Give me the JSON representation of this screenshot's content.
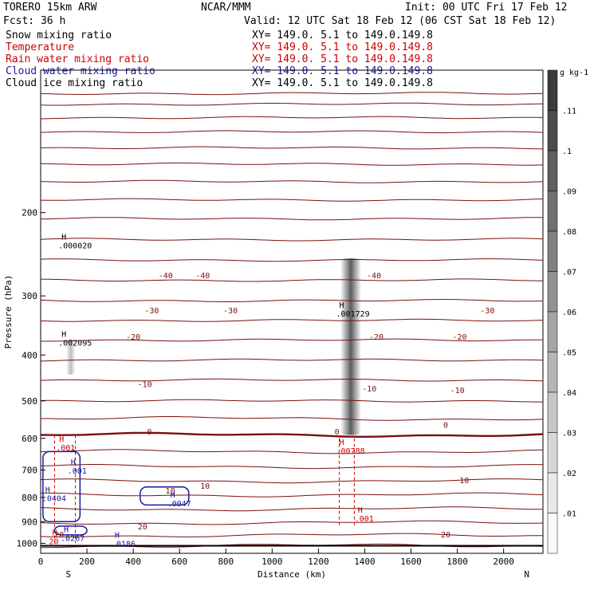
{
  "header": {
    "model": "TORERO  15km ARW",
    "org": "NCAR/MMM",
    "init": "Init: 00 UTC Fri 17 Feb 12",
    "fcst": "Fcst:   36 h",
    "valid": "Valid: 12 UTC Sat 18 Feb 12 (06 CST Sat 18 Feb 12)"
  },
  "fields": [
    {
      "label": "Snow mixing ratio",
      "xy": "XY= 149.0.  5.1 to 149.0.149.8",
      "color": "#000000"
    },
    {
      "label": "Temperature",
      "xy": "XY= 149.0.  5.1 to 149.0.149.8",
      "color": "#cc0000"
    },
    {
      "label": "Rain water mixing ratio",
      "xy": "XY= 149.0.  5.1 to 149.0.149.8",
      "color": "#cc0000"
    },
    {
      "label": "Cloud water mixing ratio",
      "xy": "XY= 149.0.  5.1 to 149.0.149.8",
      "color": "#1a1aa0"
    },
    {
      "label": "Cloud ice mixing ratio",
      "xy": "XY= 149.0.  5.1 to 149.0.149.8",
      "color": "#000000"
    }
  ],
  "chart_data": {
    "type": "cross-section",
    "xlabel": "Distance (km)",
    "ylabel": "Pressure (hPa)",
    "xlim": [
      0,
      2170
    ],
    "ylim": [
      1050,
      100
    ],
    "x_ticks": [
      0,
      200,
      400,
      600,
      800,
      1000,
      1200,
      1400,
      1600,
      1800,
      2000
    ],
    "x_tick_labels": [
      "0",
      "200",
      "400",
      "600",
      "800",
      "1000",
      "1200",
      "1400",
      "1600",
      "1800",
      "2000"
    ],
    "y_ticks": [
      200,
      300,
      400,
      500,
      600,
      700,
      800,
      900,
      1000
    ],
    "y_tick_labels": [
      "200",
      "300",
      "400",
      "500",
      "600",
      "700",
      "800",
      "900",
      "1000"
    ],
    "end_labels": {
      "left": "S",
      "right": "N"
    },
    "temperature_isotherms": [
      {
        "label": "-40",
        "positions": [
          {
            "x": 540,
            "p": 272
          },
          {
            "x": 700,
            "p": 272
          },
          {
            "x": 1440,
            "p": 272
          }
        ]
      },
      {
        "label": "-30",
        "positions": [
          {
            "x": 480,
            "p": 323
          },
          {
            "x": 820,
            "p": 323
          },
          {
            "x": 1930,
            "p": 323
          }
        ]
      },
      {
        "label": "-20",
        "positions": [
          {
            "x": 400,
            "p": 367
          },
          {
            "x": 1450,
            "p": 367
          },
          {
            "x": 1810,
            "p": 367
          }
        ]
      },
      {
        "label": "-10",
        "positions": [
          {
            "x": 450,
            "p": 462
          },
          {
            "x": 1420,
            "p": 472
          },
          {
            "x": 1800,
            "p": 476
          }
        ]
      },
      {
        "label": "0",
        "positions": [
          {
            "x": 470,
            "p": 582
          },
          {
            "x": 1280,
            "p": 582
          },
          {
            "x": 1750,
            "p": 563
          }
        ]
      },
      {
        "label": "10",
        "positions": [
          {
            "x": 560,
            "p": 776
          },
          {
            "x": 710,
            "p": 758
          },
          {
            "x": 1830,
            "p": 738
          }
        ]
      },
      {
        "label": "20",
        "positions": [
          {
            "x": 440,
            "p": 923
          },
          {
            "x": 1750,
            "p": 960
          },
          {
            "x": 80,
            "p": 960
          }
        ]
      }
    ],
    "maxima": [
      {
        "symbol": "H",
        "value": ".000020",
        "field": "snow",
        "x": 90,
        "p": 228
      },
      {
        "symbol": "H",
        "value": ".002095",
        "field": "snow",
        "x": 90,
        "p": 366
      },
      {
        "symbol": "H",
        "value": ".001729",
        "field": "snow",
        "x": 1290,
        "p": 318
      },
      {
        "symbol": "H",
        "value": ".00788",
        "field": "rain",
        "x": 1290,
        "p": 620
      },
      {
        "symbol": "H",
        "value": ".001",
        "field": "rain",
        "x": 80,
        "p": 610
      },
      {
        "symbol": "H",
        "value": ".001",
        "field": "cloud",
        "x": 130,
        "p": 683
      },
      {
        "symbol": "H",
        "value": ".0404",
        "field": "cloud",
        "x": 20,
        "p": 780
      },
      {
        "symbol": "H",
        "value": ".0047",
        "field": "cloud",
        "x": 560,
        "p": 800
      },
      {
        "symbol": "H",
        "value": ".0186",
        "field": "cloud",
        "x": 320,
        "p": 973
      },
      {
        "symbol": "H",
        "value": ".0267",
        "field": "cloud",
        "x": 100,
        "p": 947
      },
      {
        "symbol": "H",
        "value": ".001",
        "field": "rain",
        "x": 1370,
        "p": 862
      },
      {
        "symbol": "H",
        "value": "20",
        "field": "temp",
        "x": 50,
        "p": 962
      }
    ],
    "colorbar": {
      "unit": "g kg-1",
      "levels": [
        ".11",
        ".1",
        ".09",
        ".08",
        ".07",
        ".06",
        ".05",
        ".04",
        ".03",
        ".02",
        ".01"
      ]
    }
  }
}
